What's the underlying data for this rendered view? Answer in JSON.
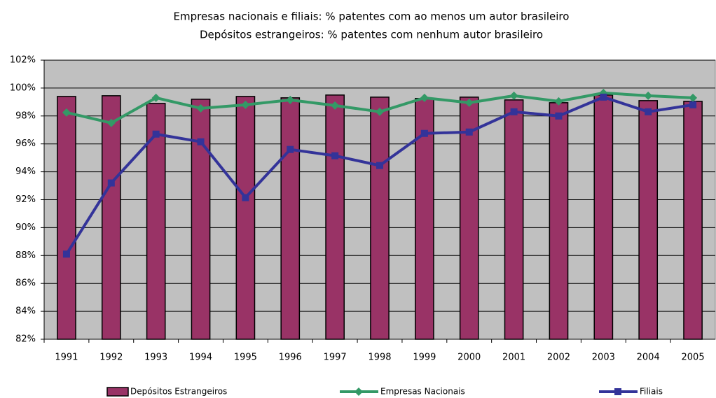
{
  "chart_data": {
    "type": "bar-line",
    "title": "Empresas nacionais e filiais: % patentes com ao menos um autor brasileiro",
    "subtitle": "Depósitos estrangeiros: % patentes com nenhum autor brasileiro",
    "categories": [
      "1991",
      "1992",
      "1993",
      "1994",
      "1995",
      "1996",
      "1997",
      "1998",
      "1999",
      "2000",
      "2001",
      "2002",
      "2003",
      "2004",
      "2005"
    ],
    "series": [
      {
        "name": "Depósitos Estrangeiros",
        "kind": "bar",
        "color": "#993366",
        "values": [
          99.4,
          99.45,
          98.9,
          99.2,
          99.4,
          99.3,
          99.5,
          99.35,
          99.25,
          99.35,
          99.15,
          98.95,
          99.5,
          99.1,
          99.05
        ]
      },
      {
        "name": "Empresas Nacionais",
        "kind": "line",
        "marker": "diamond",
        "color": "#339966",
        "values": [
          98.25,
          97.5,
          99.3,
          98.55,
          98.8,
          99.15,
          98.75,
          98.3,
          99.3,
          98.95,
          99.45,
          99.05,
          99.65,
          99.45,
          99.3
        ]
      },
      {
        "name": "Filiais",
        "kind": "line",
        "marker": "square",
        "color": "#333399",
        "values": [
          88.1,
          93.2,
          96.7,
          96.15,
          92.15,
          95.6,
          95.15,
          94.45,
          96.75,
          96.85,
          98.3,
          98.0,
          99.35,
          98.3,
          98.8
        ]
      }
    ],
    "ylim": [
      82,
      102
    ],
    "yticks": [
      {
        "value": 82,
        "label": "82%"
      },
      {
        "value": 84,
        "label": "84%"
      },
      {
        "value": 86,
        "label": "86%"
      },
      {
        "value": 88,
        "label": "88%"
      },
      {
        "value": 90,
        "label": "90%"
      },
      {
        "value": 92,
        "label": "92%"
      },
      {
        "value": 94,
        "label": "94%"
      },
      {
        "value": 96,
        "label": "96%"
      },
      {
        "value": 98,
        "label": "98%"
      },
      {
        "value": 100,
        "label": "100%"
      },
      {
        "value": 102,
        "label": "102%"
      }
    ],
    "grid": true,
    "legend": "bottom",
    "plot_background": "#c0c0c0"
  }
}
